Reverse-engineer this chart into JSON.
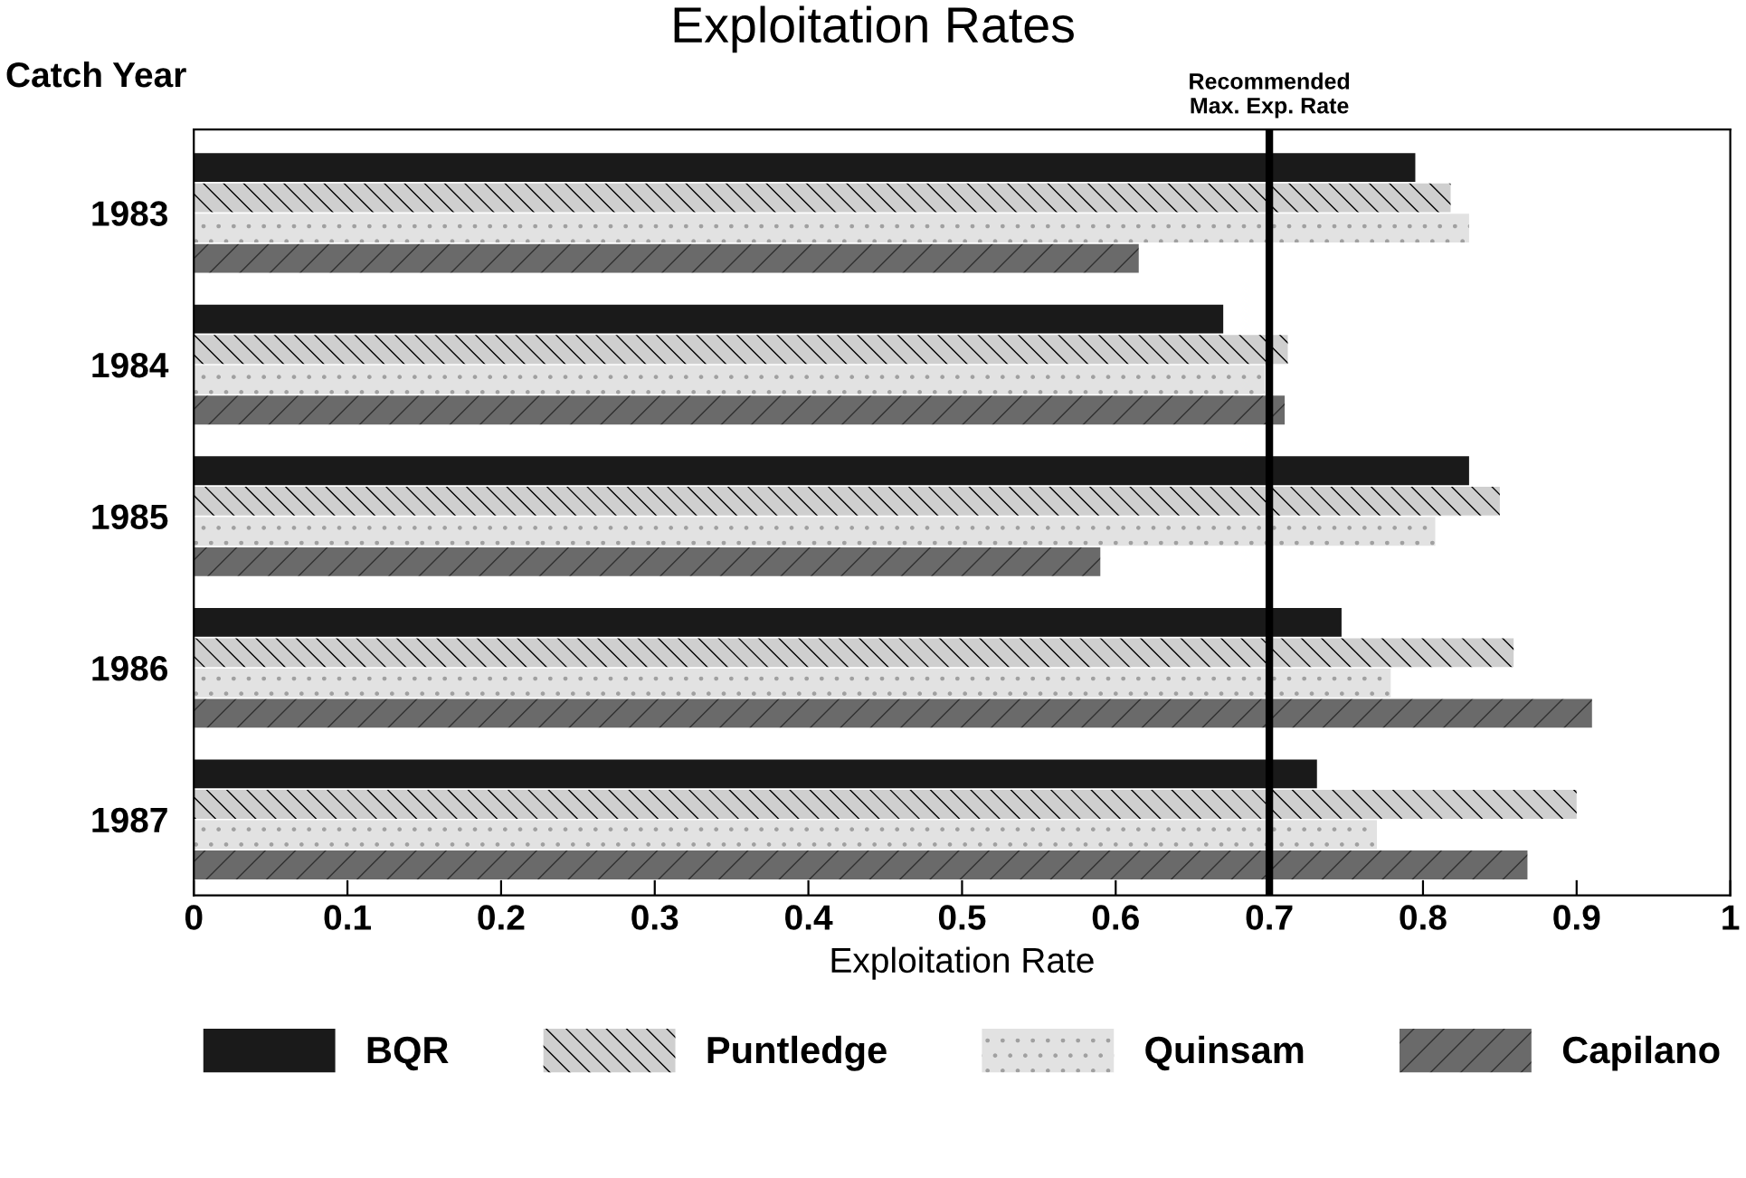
{
  "chart_data": {
    "type": "bar",
    "orientation": "horizontal",
    "title": "Exploitation Rates",
    "ylabel": "Catch Year",
    "xlabel": "Exploitation Rate",
    "categories": [
      "1983",
      "1984",
      "1985",
      "1986",
      "1987"
    ],
    "series": [
      {
        "name": "BQR",
        "color": "#1a1a1a",
        "values": [
          0.795,
          0.67,
          0.83,
          0.747,
          0.731
        ]
      },
      {
        "name": "Puntledge",
        "color": "#cfcfcf",
        "values": [
          0.818,
          0.712,
          0.85,
          0.859,
          0.9
        ]
      },
      {
        "name": "Quinsam",
        "color": "#e2e2e2",
        "values": [
          0.83,
          0.697,
          0.808,
          0.779,
          0.77
        ]
      },
      {
        "name": "Capilano",
        "color": "#6a6a6a",
        "values": [
          0.615,
          0.71,
          0.59,
          0.91,
          0.868
        ]
      }
    ],
    "xlim": [
      0,
      1
    ],
    "xticks": [
      0,
      0.1,
      0.2,
      0.3,
      0.4,
      0.5,
      0.6,
      0.7,
      0.8,
      0.9,
      1
    ],
    "ref_lines": [
      {
        "axis": "x",
        "value": 0.7,
        "label": "Recommended\nMax. Exp. Rate",
        "color": "#000000"
      }
    ],
    "grid": false,
    "legend": "bottom"
  }
}
